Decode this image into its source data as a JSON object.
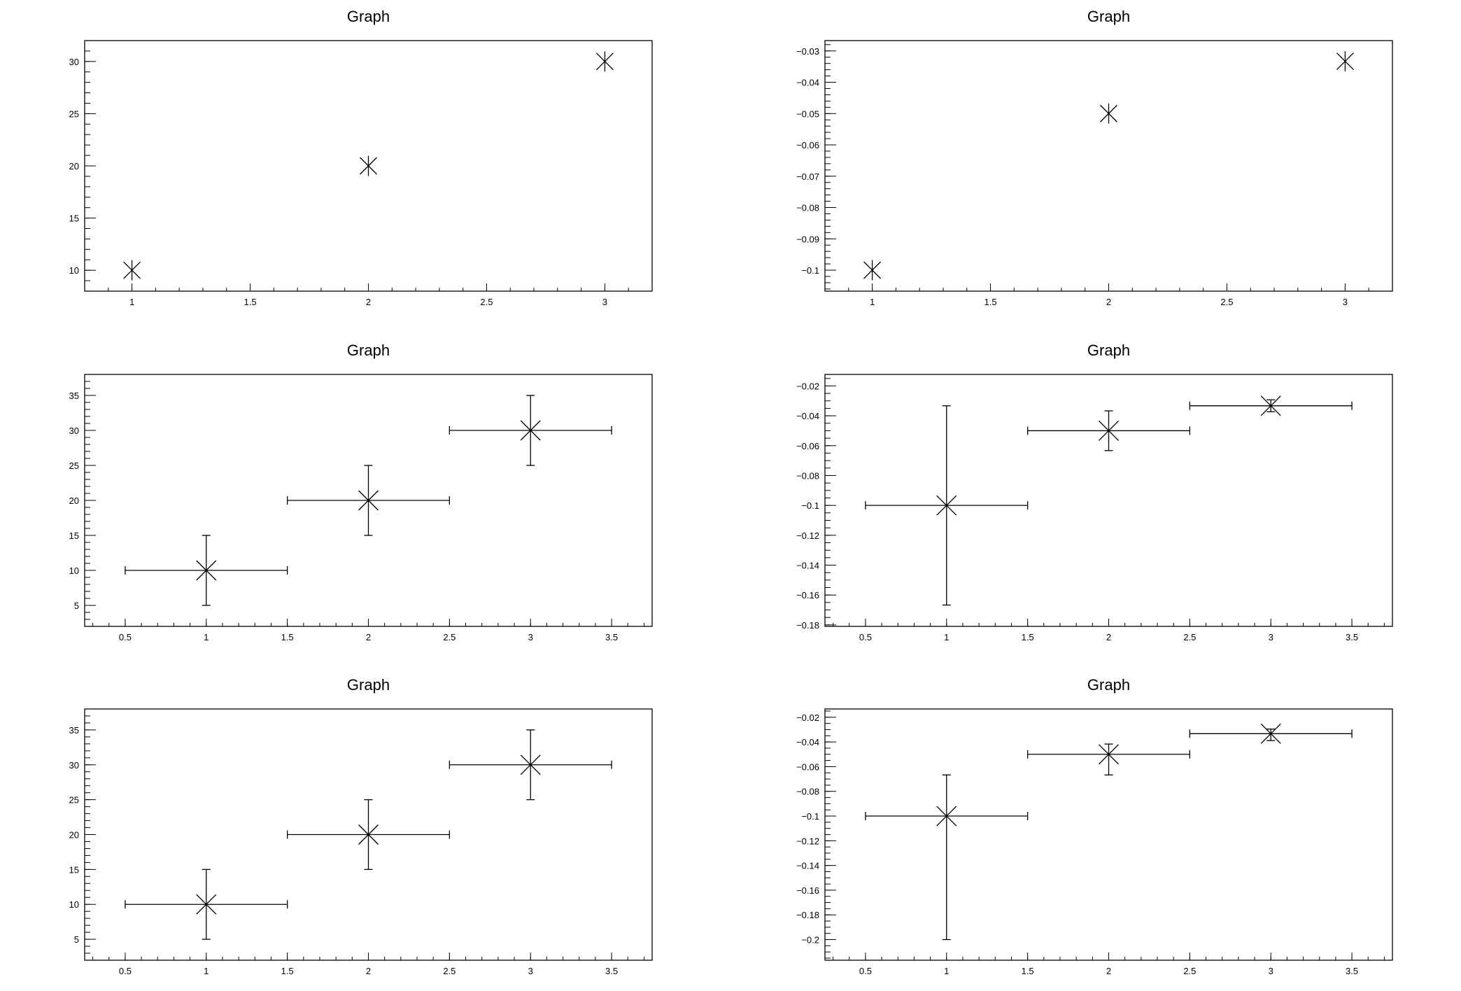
{
  "canvas": {
    "background": "#ffffff",
    "foreground": "#000000"
  },
  "chart_data": [
    {
      "type": "scatter",
      "title": "Graph",
      "marker": "asterisk",
      "xlim": [
        0.8,
        3.2
      ],
      "ylim": [
        8,
        32
      ],
      "x_ticks": {
        "major": [
          1,
          1.5,
          2,
          2.5,
          3
        ],
        "minor_step": 0.1
      },
      "y_ticks": {
        "major": [
          10,
          15,
          20,
          25,
          30
        ],
        "minor_step": 1
      },
      "x_tick_labels": [
        "1",
        "1.5",
        "2",
        "2.5",
        "3"
      ],
      "y_tick_labels": [
        "10",
        "15",
        "20",
        "25",
        "30"
      ],
      "x": [
        1,
        2,
        3
      ],
      "y": [
        10,
        20,
        30
      ]
    },
    {
      "type": "scatter",
      "title": "Graph",
      "marker": "asterisk",
      "xlim": [
        0.8,
        3.2
      ],
      "ylim": [
        -0.1067,
        -0.0267
      ],
      "x_ticks": {
        "major": [
          1,
          1.5,
          2,
          2.5,
          3
        ],
        "minor_step": 0.1
      },
      "y_ticks": {
        "major": [
          -0.1,
          -0.09,
          -0.08,
          -0.07,
          -0.06,
          -0.05,
          -0.04,
          -0.03
        ],
        "minor_step": 0.002
      },
      "x_tick_labels": [
        "1",
        "1.5",
        "2",
        "2.5",
        "3"
      ],
      "y_tick_labels": [
        "−0.1",
        "−0.09",
        "−0.08",
        "−0.07",
        "−0.06",
        "−0.05",
        "−0.04",
        "−0.03"
      ],
      "x": [
        1,
        2,
        3
      ],
      "y": [
        -0.1,
        -0.05,
        -0.0333
      ]
    },
    {
      "type": "scatter",
      "title": "Graph",
      "marker": "x",
      "xlim": [
        0.25,
        3.75
      ],
      "ylim": [
        2.0,
        38.0
      ],
      "x_ticks": {
        "major": [
          0.5,
          1,
          1.5,
          2,
          2.5,
          3,
          3.5
        ],
        "minor_step": 0.1
      },
      "y_ticks": {
        "major": [
          5,
          10,
          15,
          20,
          25,
          30,
          35
        ],
        "minor_step": 1
      },
      "x_tick_labels": [
        "0.5",
        "1",
        "1.5",
        "2",
        "2.5",
        "3",
        "3.5"
      ],
      "y_tick_labels": [
        "5",
        "10",
        "15",
        "20",
        "25",
        "30",
        "35"
      ],
      "x": [
        1,
        2,
        3
      ],
      "y": [
        10,
        20,
        30
      ],
      "x_err": [
        [
          0.5,
          0.5
        ],
        [
          0.5,
          0.5
        ],
        [
          0.5,
          0.5
        ]
      ],
      "y_err": [
        [
          5,
          5
        ],
        [
          5,
          5
        ],
        [
          5,
          5
        ]
      ]
    },
    {
      "type": "scatter",
      "title": "Graph",
      "marker": "x",
      "xlim": [
        0.25,
        3.75
      ],
      "ylim": [
        -0.181,
        -0.0123
      ],
      "x_ticks": {
        "major": [
          0.5,
          1,
          1.5,
          2,
          2.5,
          3,
          3.5
        ],
        "minor_step": 0.1
      },
      "y_ticks": {
        "major": [
          -0.18,
          -0.16,
          -0.14,
          -0.12,
          -0.1,
          -0.08,
          -0.06,
          -0.04,
          -0.02
        ],
        "minor_step": 0.005
      },
      "x_tick_labels": [
        "0.5",
        "1",
        "1.5",
        "2",
        "2.5",
        "3",
        "3.5"
      ],
      "y_tick_labels": [
        "−0.18",
        "−0.16",
        "−0.14",
        "−0.12",
        "−0.1",
        "−0.08",
        "−0.06",
        "−0.04",
        "−0.02"
      ],
      "x": [
        1,
        2,
        3
      ],
      "y": [
        -0.1,
        -0.05,
        -0.0333
      ],
      "x_err": [
        [
          0.5,
          0.5
        ],
        [
          0.5,
          0.5
        ],
        [
          0.5,
          0.5
        ]
      ],
      "y_err": [
        [
          0.0667,
          0.0667
        ],
        [
          0.0133,
          0.0133
        ],
        [
          0.004,
          0.004
        ]
      ]
    },
    {
      "type": "scatter",
      "title": "Graph",
      "marker": "x",
      "xlim": [
        0.25,
        3.75
      ],
      "ylim": [
        2.0,
        38.0
      ],
      "x_ticks": {
        "major": [
          0.5,
          1,
          1.5,
          2,
          2.5,
          3,
          3.5
        ],
        "minor_step": 0.1
      },
      "y_ticks": {
        "major": [
          5,
          10,
          15,
          20,
          25,
          30,
          35
        ],
        "minor_step": 1
      },
      "x_tick_labels": [
        "0.5",
        "1",
        "1.5",
        "2",
        "2.5",
        "3",
        "3.5"
      ],
      "y_tick_labels": [
        "5",
        "10",
        "15",
        "20",
        "25",
        "30",
        "35"
      ],
      "x": [
        1,
        2,
        3
      ],
      "y": [
        10,
        20,
        30
      ],
      "x_err": [
        [
          0.5,
          0.5
        ],
        [
          0.5,
          0.5
        ],
        [
          0.5,
          0.5
        ]
      ],
      "y_err": [
        [
          5,
          5
        ],
        [
          5,
          5
        ],
        [
          5,
          5
        ]
      ]
    },
    {
      "type": "scatter",
      "title": "Graph",
      "marker": "x",
      "xlim": [
        0.25,
        3.75
      ],
      "ylim": [
        -0.2167,
        -0.0133
      ],
      "x_ticks": {
        "major": [
          0.5,
          1,
          1.5,
          2,
          2.5,
          3,
          3.5
        ],
        "minor_step": 0.1
      },
      "y_ticks": {
        "major": [
          -0.2,
          -0.18,
          -0.16,
          -0.14,
          -0.12,
          -0.1,
          -0.08,
          -0.06,
          -0.04,
          -0.02
        ],
        "minor_step": 0.005
      },
      "x_tick_labels": [
        "0.5",
        "1",
        "1.5",
        "2",
        "2.5",
        "3",
        "3.5"
      ],
      "y_tick_labels": [
        "−0.2",
        "−0.18",
        "−0.16",
        "−0.14",
        "−0.12",
        "−0.1",
        "−0.08",
        "−0.06",
        "−0.04",
        "−0.02"
      ],
      "x": [
        1,
        2,
        3
      ],
      "y": [
        -0.1,
        -0.05,
        -0.0333
      ],
      "x_err": [
        [
          0.5,
          0.5
        ],
        [
          0.5,
          0.5
        ],
        [
          0.5,
          0.5
        ]
      ],
      "y_err": [
        [
          0.1,
          0.0333
        ],
        [
          0.0167,
          0.0083
        ],
        [
          0.0056,
          0.0037
        ]
      ]
    }
  ]
}
